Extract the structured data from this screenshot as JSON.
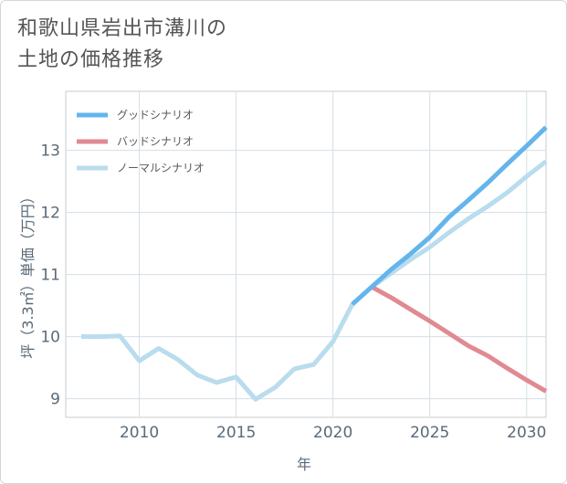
{
  "title_lines": [
    "和歌山県岩出市溝川の",
    "土地の価格推移"
  ],
  "chart_data": {
    "type": "line",
    "xlabel": "年",
    "ylabel": "坪（3.3㎡）単価（万円）",
    "xlim": [
      2006.2,
      2031
    ],
    "ylim": [
      8.7,
      13.95
    ],
    "x_ticks": [
      2010,
      2015,
      2020,
      2025,
      2030
    ],
    "y_ticks": [
      9,
      10,
      11,
      12,
      13
    ],
    "grid": true,
    "legend_position": "top-left",
    "series": [
      {
        "name": "グッドシナリオ",
        "color": "#64b5ec",
        "x": [
          2021,
          2022,
          2023,
          2024,
          2025,
          2026,
          2027,
          2028,
          2029,
          2030,
          2031
        ],
        "y": [
          10.52,
          10.8,
          11.08,
          11.33,
          11.6,
          11.93,
          12.2,
          12.48,
          12.78,
          13.07,
          13.37
        ]
      },
      {
        "name": "バッドシナリオ",
        "color": "#e08a91",
        "x": [
          2022,
          2023,
          2024,
          2025,
          2026,
          2027,
          2028,
          2029,
          2030,
          2031
        ],
        "y": [
          10.8,
          10.63,
          10.44,
          10.25,
          10.05,
          9.85,
          9.69,
          9.49,
          9.3,
          9.12
        ]
      },
      {
        "name": "ノーマルシナリオ",
        "color": "#b9dcee",
        "x": [
          2007,
          2008,
          2009,
          2010,
          2011,
          2012,
          2013,
          2014,
          2015,
          2016,
          2017,
          2018,
          2019,
          2020,
          2021,
          2022,
          2023,
          2024,
          2025,
          2026,
          2027,
          2028,
          2029,
          2030,
          2031
        ],
        "y": [
          10.0,
          10.0,
          10.01,
          9.61,
          9.81,
          9.63,
          9.38,
          9.26,
          9.35,
          8.99,
          9.18,
          9.48,
          9.55,
          9.92,
          10.52,
          10.8,
          11.02,
          11.24,
          11.44,
          11.68,
          11.9,
          12.1,
          12.32,
          12.58,
          12.82
        ]
      }
    ]
  }
}
